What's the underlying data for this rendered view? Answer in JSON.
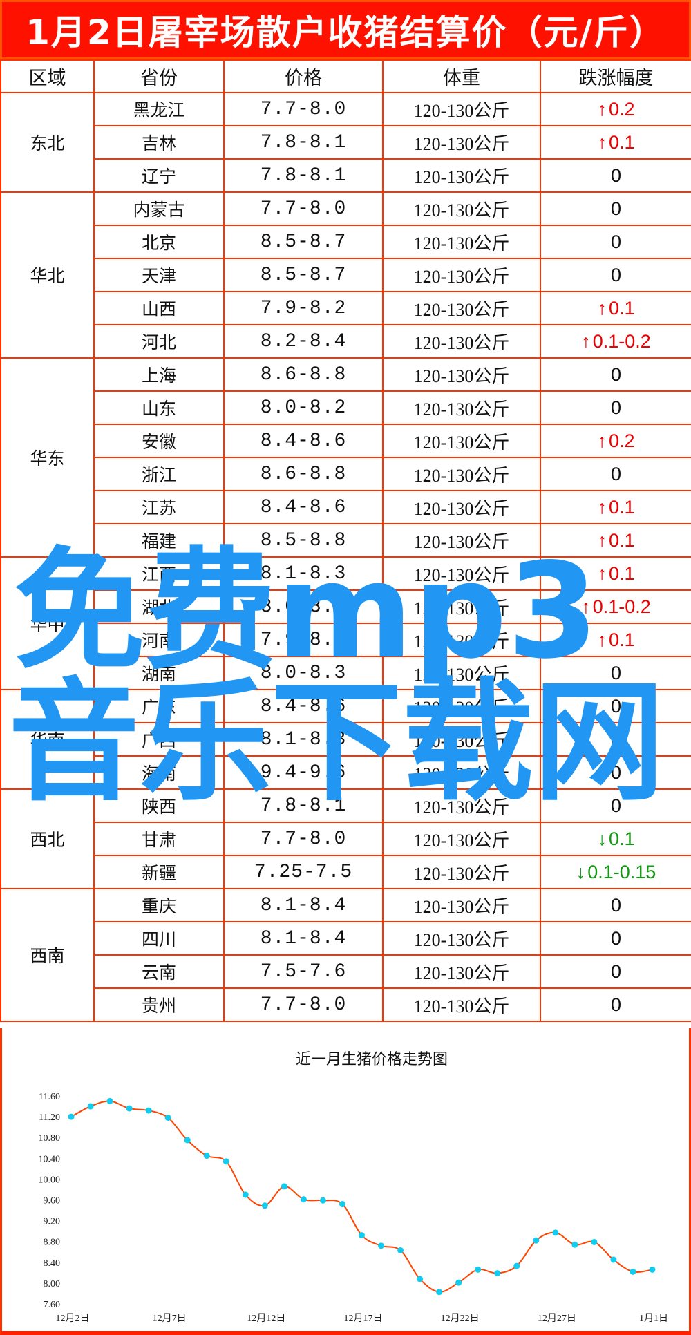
{
  "title": "1月2日屠宰场散户收猪结算价（元/斤）",
  "table": {
    "headers": [
      "区域",
      "省份",
      "价格",
      "体重",
      "跌涨幅度"
    ],
    "regions": [
      {
        "name": "东北",
        "rows": [
          {
            "province": "黑龙江",
            "price": "7.7-8.0",
            "weight": "120-130公斤",
            "dir": "up",
            "change": "0.2"
          },
          {
            "province": "吉林",
            "price": "7.8-8.1",
            "weight": "120-130公斤",
            "dir": "up",
            "change": "0.1"
          },
          {
            "province": "辽宁",
            "price": "7.8-8.1",
            "weight": "120-130公斤",
            "dir": "flat",
            "change": "0"
          }
        ]
      },
      {
        "name": "华北",
        "rows": [
          {
            "province": "内蒙古",
            "price": "7.7-8.0",
            "weight": "120-130公斤",
            "dir": "flat",
            "change": "0"
          },
          {
            "province": "北京",
            "price": "8.5-8.7",
            "weight": "120-130公斤",
            "dir": "flat",
            "change": "0"
          },
          {
            "province": "天津",
            "price": "8.5-8.7",
            "weight": "120-130公斤",
            "dir": "flat",
            "change": "0"
          },
          {
            "province": "山西",
            "price": "7.9-8.2",
            "weight": "120-130公斤",
            "dir": "up",
            "change": "0.1"
          },
          {
            "province": "河北",
            "price": "8.2-8.4",
            "weight": "120-130公斤",
            "dir": "up",
            "change": "0.1-0.2"
          }
        ]
      },
      {
        "name": "华东",
        "rows": [
          {
            "province": "上海",
            "price": "8.6-8.8",
            "weight": "120-130公斤",
            "dir": "flat",
            "change": "0"
          },
          {
            "province": "山东",
            "price": "8.0-8.2",
            "weight": "120-130公斤",
            "dir": "flat",
            "change": "0"
          },
          {
            "province": "安徽",
            "price": "8.4-8.6",
            "weight": "120-130公斤",
            "dir": "up",
            "change": "0.2"
          },
          {
            "province": "浙江",
            "price": "8.6-8.8",
            "weight": "120-130公斤",
            "dir": "flat",
            "change": "0"
          },
          {
            "province": "江苏",
            "price": "8.4-8.6",
            "weight": "120-130公斤",
            "dir": "up",
            "change": "0.1"
          },
          {
            "province": "福建",
            "price": "8.5-8.8",
            "weight": "120-130公斤",
            "dir": "up",
            "change": "0.1"
          }
        ]
      },
      {
        "name": "华中",
        "rows": [
          {
            "province": "江西",
            "price": "8.1-8.3",
            "weight": "120-130公斤",
            "dir": "up",
            "change": "0.1"
          },
          {
            "province": "湖北",
            "price": "8.0-8.3",
            "weight": "120-130公斤",
            "dir": "up",
            "change": "0.1-0.2"
          },
          {
            "province": "河南",
            "price": "7.9-8.2",
            "weight": "120-130公斤",
            "dir": "up",
            "change": "0.1"
          },
          {
            "province": "湖南",
            "price": "8.0-8.3",
            "weight": "120-130公斤",
            "dir": "flat",
            "change": "0"
          }
        ]
      },
      {
        "name": "华南",
        "rows": [
          {
            "province": "广东",
            "price": "8.4-8.6",
            "weight": "120-130公斤",
            "dir": "flat",
            "change": "0"
          },
          {
            "province": "广西",
            "price": "8.1-8.3",
            "weight": "120-130公斤",
            "dir": "flat",
            "change": "0"
          },
          {
            "province": "海南",
            "price": "9.4-9.6",
            "weight": "120-130公斤",
            "dir": "flat",
            "change": "0"
          }
        ]
      },
      {
        "name": "西北",
        "rows": [
          {
            "province": "陕西",
            "price": "7.8-8.1",
            "weight": "120-130公斤",
            "dir": "flat",
            "change": "0"
          },
          {
            "province": "甘肃",
            "price": "7.7-8.0",
            "weight": "120-130公斤",
            "dir": "down",
            "change": "0.1"
          },
          {
            "province": "新疆",
            "price": "7.25-7.5",
            "weight": "120-130公斤",
            "dir": "down",
            "change": "0.1-0.15"
          }
        ]
      },
      {
        "name": "西南",
        "rows": [
          {
            "province": "重庆",
            "price": "8.1-8.4",
            "weight": "120-130公斤",
            "dir": "flat",
            "change": "0"
          },
          {
            "province": "四川",
            "price": "8.1-8.4",
            "weight": "120-130公斤",
            "dir": "flat",
            "change": "0"
          },
          {
            "province": "云南",
            "price": "7.5-7.6",
            "weight": "120-130公斤",
            "dir": "flat",
            "change": "0"
          },
          {
            "province": "贵州",
            "price": "7.7-8.0",
            "weight": "120-130公斤",
            "dir": "flat",
            "change": "0"
          }
        ]
      }
    ],
    "colors": {
      "up": "#ee0000",
      "down": "#119911",
      "grid": "#ff3300",
      "title_bg": "#ff1100"
    }
  },
  "watermark": {
    "line1": "免费mp3",
    "line2": "音乐下载网",
    "color": "#2196f3"
  },
  "chart_data": {
    "type": "line",
    "title": "近一月生猪价格走势图",
    "x": [
      "12月2日",
      "12月3日",
      "12月4日",
      "12月5日",
      "12月6日",
      "12月7日",
      "12月8日",
      "12月9日",
      "12月10日",
      "12月11日",
      "12月12日",
      "12月13日",
      "12月14日",
      "12月15日",
      "12月16日",
      "12月17日",
      "12月18日",
      "12月19日",
      "12月20日",
      "12月21日",
      "12月22日",
      "12月23日",
      "12月24日",
      "12月25日",
      "12月26日",
      "12月27日",
      "12月28日",
      "12月29日",
      "12月30日",
      "12月31日",
      "1月1日"
    ],
    "xticks": [
      "12月2日",
      "12月7日",
      "12月12日",
      "12月17日",
      "12月22日",
      "12月27日",
      "1月1日"
    ],
    "values": [
      11.2,
      11.4,
      11.5,
      11.36,
      11.32,
      11.18,
      10.75,
      10.45,
      10.34,
      9.7,
      9.49,
      9.86,
      9.61,
      9.59,
      9.52,
      8.92,
      8.72,
      8.63,
      8.08,
      7.83,
      8.01,
      8.26,
      8.19,
      8.33,
      8.82,
      8.97,
      8.74,
      8.79,
      8.45,
      8.22,
      8.26
    ],
    "yticks": [
      "11.60",
      "11.20",
      "10.80",
      "10.40",
      "10.00",
      "9.60",
      "9.20",
      "8.80",
      "8.40",
      "8.00",
      "7.60"
    ],
    "ylim": [
      7.6,
      11.6
    ],
    "grid": false,
    "line_color": "#ff4400",
    "marker_color": "#11ccee"
  }
}
